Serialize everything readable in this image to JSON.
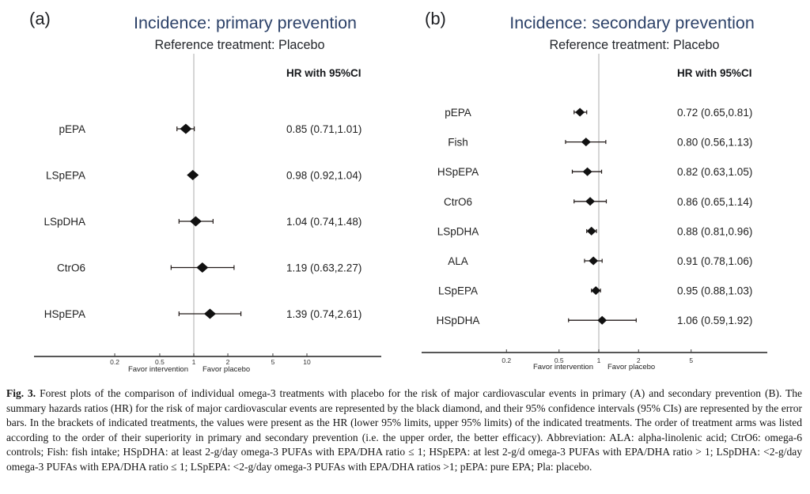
{
  "colors": {
    "title_blue": "#2d4269",
    "subtitle_dark": "#23262b",
    "axis": "#3f3f3f",
    "tick_text": "#333333",
    "favor_text": "#222222",
    "row_text": "#1f1f1f",
    "marker_black": "#111111",
    "ci_line": "#221a18",
    "reference_line": "#c9c9c9"
  },
  "chart_data": [
    {
      "type": "forest",
      "panel_label": "(a)",
      "title": "Incidence: primary prevention",
      "subtitle": "Reference treatment: Placebo",
      "column_header": "HR with 95%CI",
      "x_scale": "log",
      "x_ticks": [
        0.2,
        0.5,
        1,
        2,
        5,
        10
      ],
      "x_axis_note_left": "Favor intervention",
      "x_axis_note_right": "Favor placebo",
      "reference_value": 1,
      "rows": [
        {
          "label": "pEPA",
          "hr": 0.85,
          "lo": 0.71,
          "hi": 1.01,
          "text": "0.85 (0.71,1.01)"
        },
        {
          "label": "LSpEPA",
          "hr": 0.98,
          "lo": 0.92,
          "hi": 1.04,
          "text": "0.98 (0.92,1.04)"
        },
        {
          "label": "LSpDHA",
          "hr": 1.04,
          "lo": 0.74,
          "hi": 1.48,
          "text": "1.04 (0.74,1.48)"
        },
        {
          "label": "CtrO6",
          "hr": 1.19,
          "lo": 0.63,
          "hi": 2.27,
          "text": "1.19 (0.63,2.27)"
        },
        {
          "label": "HSpEPA",
          "hr": 1.39,
          "lo": 0.74,
          "hi": 2.61,
          "text": "1.39 (0.74,2.61)"
        }
      ]
    },
    {
      "type": "forest",
      "panel_label": "(b)",
      "title": "Incidence: secondary prevention",
      "subtitle": "Reference treatment: Placebo",
      "column_header": "HR with 95%CI",
      "x_scale": "log",
      "x_ticks": [
        0.2,
        0.5,
        1,
        2,
        5
      ],
      "x_axis_note_left": "Favor intervention",
      "x_axis_note_right": "Favor placebo",
      "reference_value": 1,
      "rows": [
        {
          "label": "pEPA",
          "hr": 0.72,
          "lo": 0.65,
          "hi": 0.81,
          "text": "0.72 (0.65,0.81)"
        },
        {
          "label": "Fish",
          "hr": 0.8,
          "lo": 0.56,
          "hi": 1.13,
          "text": "0.80 (0.56,1.13)"
        },
        {
          "label": "HSpEPA",
          "hr": 0.82,
          "lo": 0.63,
          "hi": 1.05,
          "text": "0.82 (0.63,1.05)"
        },
        {
          "label": "CtrO6",
          "hr": 0.86,
          "lo": 0.65,
          "hi": 1.14,
          "text": "0.86 (0.65,1.14)"
        },
        {
          "label": "LSpDHA",
          "hr": 0.88,
          "lo": 0.81,
          "hi": 0.96,
          "text": "0.88 (0.81,0.96)"
        },
        {
          "label": "ALA",
          "hr": 0.91,
          "lo": 0.78,
          "hi": 1.06,
          "text": "0.91 (0.78,1.06)"
        },
        {
          "label": "LSpEPA",
          "hr": 0.95,
          "lo": 0.88,
          "hi": 1.03,
          "text": "0.95 (0.88,1.03)"
        },
        {
          "label": "HSpDHA",
          "hr": 1.06,
          "lo": 0.59,
          "hi": 1.92,
          "text": "1.06 (0.59,1.92)"
        }
      ]
    }
  ],
  "caption": {
    "label": "Fig. 3.",
    "text": "Forest plots of the comparison of individual omega-3 treatments with placebo for the risk of major cardiovascular events in primary (A) and secondary prevention (B). The summary hazards ratios (HR) for the risk of major cardiovascular events are represented by the black diamond, and their 95% confidence intervals (95% CIs) are represented by the error bars. In the brackets of indicated treatments, the values were present as the HR (lower 95% limits, upper 95% limits) of the indicated treatments. The order of treatment arms was listed according to the order of their superiority in primary and secondary prevention (i.e. the upper order, the better efficacy). Abbreviation: ALA: alpha-linolenic acid; CtrO6: omega-6 controls; Fish: fish intake; HSpDHA: at least 2-g/day omega-3 PUFAs with EPA/DHA ratio ≤ 1; HSpEPA: at lest 2-g/d omega-3 PUFAs with EPA/DHA ratio > 1; LSpDHA: <2-g/day omega-3 PUFAs with EPA/DHA ratio ≤ 1; LSpEPA: <2-g/day omega-3 PUFAs with EPA/DHA ratios >1; pEPA: pure EPA; Pla: placebo."
  }
}
